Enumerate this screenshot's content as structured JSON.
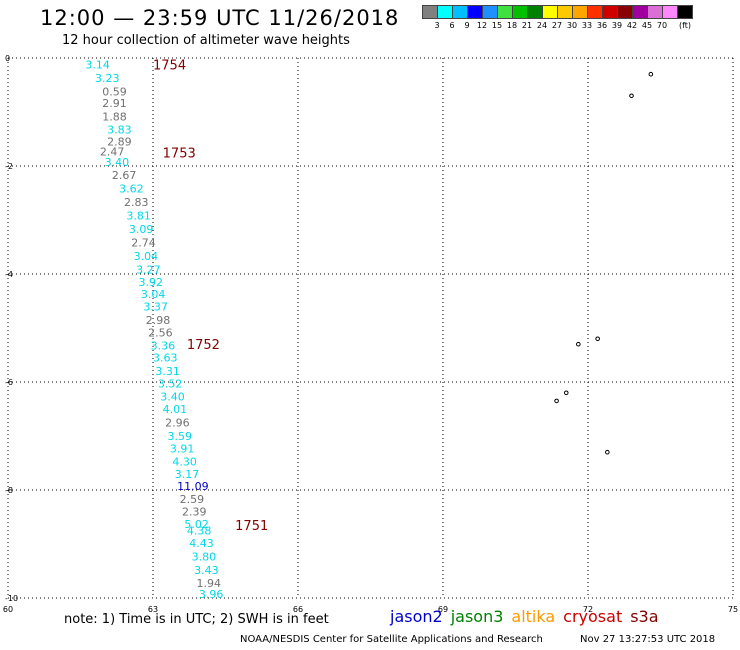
{
  "header": {
    "title": "12:00 — 23:59 UTC 11/26/2018",
    "subtitle": "12 hour collection of altimeter wave heights"
  },
  "legend": {
    "colors": [
      "#808080",
      "#00ffff",
      "#00bfff",
      "#0000ff",
      "#1e90ff",
      "#40e040",
      "#00c000",
      "#008000",
      "#ffff00",
      "#ffc800",
      "#ffa500",
      "#ff3000",
      "#d00000",
      "#8b0000",
      "#a000a0",
      "#da70d6",
      "#ff88ff",
      "#000000"
    ],
    "labels": [
      "3",
      "6",
      "9",
      "12",
      "15",
      "18",
      "21",
      "24",
      "27",
      "30",
      "33",
      "36",
      "39",
      "42",
      "45",
      "70",
      "(ft)"
    ]
  },
  "map": {
    "lon_range": [
      60,
      75
    ],
    "lat_range": [
      -10,
      0
    ],
    "x_ticks": [
      "60",
      "63",
      "66",
      "69",
      "72",
      "75"
    ],
    "y_ticks": [
      "0",
      "-2",
      "-4",
      "-6",
      "-8",
      "-10"
    ],
    "grid": "dotted",
    "pass_labels": [
      {
        "text": "1754",
        "lon": 63.0,
        "lat": -0.12
      },
      {
        "text": "1753",
        "lon": 63.2,
        "lat": -1.75
      },
      {
        "text": "1752",
        "lon": 63.7,
        "lat": -5.3
      },
      {
        "text": "1751",
        "lon": 64.7,
        "lat": -8.65
      }
    ],
    "observations": [
      {
        "v": "3.14",
        "c": "#00d8e8",
        "lon": 61.6,
        "lat": -0.12
      },
      {
        "v": "3.23",
        "c": "#00d8e8",
        "lon": 61.8,
        "lat": -0.37
      },
      {
        "v": "0.59",
        "c": "#707070",
        "lon": 61.95,
        "lat": -0.62
      },
      {
        "v": "2.91",
        "c": "#707070",
        "lon": 61.95,
        "lat": -0.83
      },
      {
        "v": "1.88",
        "c": "#707070",
        "lon": 61.95,
        "lat": -1.08
      },
      {
        "v": "3.83",
        "c": "#00d8e8",
        "lon": 62.05,
        "lat": -1.32
      },
      {
        "v": "2.89",
        "c": "#707070",
        "lon": 62.05,
        "lat": -1.55
      },
      {
        "v": "2.47",
        "c": "#707070",
        "lon": 61.9,
        "lat": -1.73
      },
      {
        "v": "3.40",
        "c": "#00d8e8",
        "lon": 62.0,
        "lat": -1.93
      },
      {
        "v": "2.67",
        "c": "#707070",
        "lon": 62.15,
        "lat": -2.17
      },
      {
        "v": "3.62",
        "c": "#00d8e8",
        "lon": 62.3,
        "lat": -2.42
      },
      {
        "v": "2.83",
        "c": "#707070",
        "lon": 62.4,
        "lat": -2.67
      },
      {
        "v": "3.81",
        "c": "#00d8e8",
        "lon": 62.45,
        "lat": -2.92
      },
      {
        "v": "3.09",
        "c": "#00d8e8",
        "lon": 62.5,
        "lat": -3.17
      },
      {
        "v": "2.74",
        "c": "#707070",
        "lon": 62.55,
        "lat": -3.42
      },
      {
        "v": "3.04",
        "c": "#00d8e8",
        "lon": 62.6,
        "lat": -3.67
      },
      {
        "v": "3.27",
        "c": "#00d8e8",
        "lon": 62.65,
        "lat": -3.92
      },
      {
        "v": "3.92",
        "c": "#00d8e8",
        "lon": 62.7,
        "lat": -4.15
      },
      {
        "v": "3.04",
        "c": "#00d8e8",
        "lon": 62.75,
        "lat": -4.37
      },
      {
        "v": "3.37",
        "c": "#00d8e8",
        "lon": 62.8,
        "lat": -4.6
      },
      {
        "v": "2.98",
        "c": "#707070",
        "lon": 62.85,
        "lat": -4.85
      },
      {
        "v": "2.56",
        "c": "#707070",
        "lon": 62.9,
        "lat": -5.08
      },
      {
        "v": "3.36",
        "c": "#00d8e8",
        "lon": 62.95,
        "lat": -5.32
      },
      {
        "v": "3.63",
        "c": "#00d8e8",
        "lon": 63.0,
        "lat": -5.55
      },
      {
        "v": "3.31",
        "c": "#00d8e8",
        "lon": 63.05,
        "lat": -5.8
      },
      {
        "v": "3.52",
        "c": "#00d8e8",
        "lon": 63.1,
        "lat": -6.03
      },
      {
        "v": "3.40",
        "c": "#00d8e8",
        "lon": 63.15,
        "lat": -6.27
      },
      {
        "v": "4.01",
        "c": "#00d8e8",
        "lon": 63.2,
        "lat": -6.5
      },
      {
        "v": "2.96",
        "c": "#707070",
        "lon": 63.25,
        "lat": -6.75
      },
      {
        "v": "3.59",
        "c": "#00d8e8",
        "lon": 63.3,
        "lat": -7.0
      },
      {
        "v": "3.91",
        "c": "#00d8e8",
        "lon": 63.35,
        "lat": -7.23
      },
      {
        "v": "4.30",
        "c": "#00d8e8",
        "lon": 63.4,
        "lat": -7.47
      },
      {
        "v": "3.17",
        "c": "#00d8e8",
        "lon": 63.45,
        "lat": -7.7
      },
      {
        "v": "11.09",
        "c": "#0000cc",
        "lon": 63.5,
        "lat": -7.93
      },
      {
        "v": "2.59",
        "c": "#707070",
        "lon": 63.55,
        "lat": -8.17
      },
      {
        "v": "2.39",
        "c": "#707070",
        "lon": 63.6,
        "lat": -8.4
      },
      {
        "v": "5.02",
        "c": "#00d8e8",
        "lon": 63.65,
        "lat": -8.63
      },
      {
        "v": "4.38",
        "c": "#00d8e8",
        "lon": 63.7,
        "lat": -8.75
      },
      {
        "v": "4.43",
        "c": "#00d8e8",
        "lon": 63.75,
        "lat": -8.98
      },
      {
        "v": "3.80",
        "c": "#00d8e8",
        "lon": 63.8,
        "lat": -9.23
      },
      {
        "v": "3.43",
        "c": "#00d8e8",
        "lon": 63.85,
        "lat": -9.48
      },
      {
        "v": "1.94",
        "c": "#707070",
        "lon": 63.9,
        "lat": -9.72
      },
      {
        "v": "3.96",
        "c": "#00d8e8",
        "lon": 63.95,
        "lat": -9.93
      }
    ],
    "islands": [
      {
        "lon": 72.9,
        "lat": -0.7
      },
      {
        "lon": 73.3,
        "lat": -0.3
      },
      {
        "lon": 71.8,
        "lat": -5.3
      },
      {
        "lon": 72.2,
        "lat": -5.2
      },
      {
        "lon": 71.35,
        "lat": -6.35
      },
      {
        "lon": 71.55,
        "lat": -6.2
      },
      {
        "lon": 72.4,
        "lat": -7.3
      }
    ]
  },
  "footer": {
    "note": "note:  1) Time is in UTC;  2) SWH is in feet",
    "satellites": [
      {
        "name": "jason2",
        "color": "#0000cc"
      },
      {
        "name": "jason3",
        "color": "#008000"
      },
      {
        "name": "altika",
        "color": "#ff9900"
      },
      {
        "name": "cryosat",
        "color": "#cc0000"
      },
      {
        "name": "s3a",
        "color": "#800000"
      }
    ],
    "credit": "NOAA/NESDIS Center for Satellite Applications and Research",
    "timestamp": "Nov 27 13:27:53 UTC 2018"
  }
}
